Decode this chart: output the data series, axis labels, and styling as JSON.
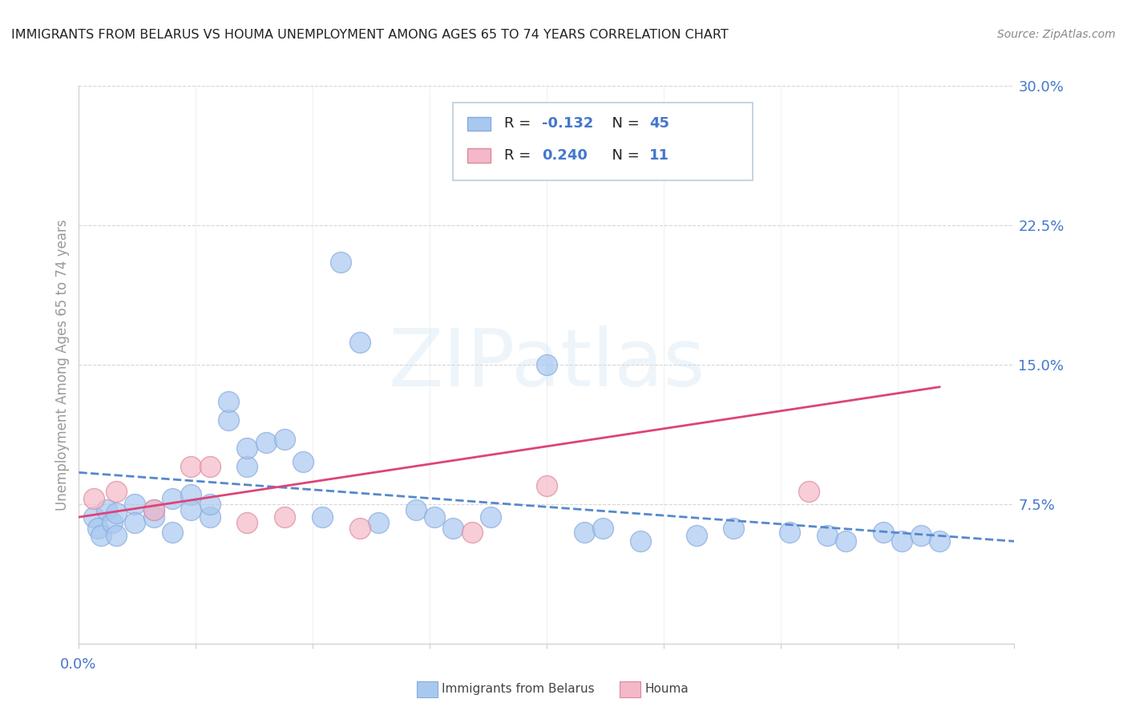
{
  "title": "IMMIGRANTS FROM BELARUS VS HOUMA UNEMPLOYMENT AMONG AGES 65 TO 74 YEARS CORRELATION CHART",
  "source": "Source: ZipAtlas.com",
  "ylabel": "Unemployment Among Ages 65 to 74 years",
  "legend_series": [
    {
      "label": "Immigrants from Belarus",
      "R": "-0.132",
      "N": "45",
      "color": "#a8c8f0"
    },
    {
      "label": "Houma",
      "R": "0.240",
      "N": "11",
      "color": "#f4b8c8"
    }
  ],
  "ytick_vals": [
    0.075,
    0.15,
    0.225,
    0.3
  ],
  "ytick_labels": [
    "7.5%",
    "15.0%",
    "22.5%",
    "30.0%"
  ],
  "xlim": [
    0.0,
    0.05
  ],
  "ylim": [
    0.0,
    0.3
  ],
  "watermark": "ZIPatlas",
  "blue_scatter_x": [
    0.0008,
    0.001,
    0.0012,
    0.0015,
    0.0018,
    0.002,
    0.002,
    0.003,
    0.003,
    0.004,
    0.004,
    0.005,
    0.005,
    0.006,
    0.006,
    0.007,
    0.007,
    0.008,
    0.008,
    0.009,
    0.009,
    0.01,
    0.011,
    0.012,
    0.013,
    0.014,
    0.015,
    0.016,
    0.018,
    0.019,
    0.02,
    0.022,
    0.025,
    0.027,
    0.028,
    0.03,
    0.033,
    0.035,
    0.038,
    0.04,
    0.041,
    0.043,
    0.044,
    0.045,
    0.046
  ],
  "blue_scatter_y": [
    0.068,
    0.062,
    0.058,
    0.072,
    0.065,
    0.07,
    0.058,
    0.075,
    0.065,
    0.072,
    0.068,
    0.078,
    0.06,
    0.08,
    0.072,
    0.068,
    0.075,
    0.12,
    0.13,
    0.095,
    0.105,
    0.108,
    0.11,
    0.098,
    0.068,
    0.205,
    0.162,
    0.065,
    0.072,
    0.068,
    0.062,
    0.068,
    0.15,
    0.06,
    0.062,
    0.055,
    0.058,
    0.062,
    0.06,
    0.058,
    0.055,
    0.06,
    0.055,
    0.058,
    0.055
  ],
  "pink_scatter_x": [
    0.0008,
    0.002,
    0.004,
    0.006,
    0.007,
    0.009,
    0.011,
    0.015,
    0.021,
    0.025,
    0.039
  ],
  "pink_scatter_y": [
    0.078,
    0.082,
    0.072,
    0.095,
    0.095,
    0.065,
    0.068,
    0.062,
    0.06,
    0.085,
    0.082
  ],
  "blue_line_x": [
    0.0,
    0.05
  ],
  "blue_line_y": [
    0.092,
    0.055
  ],
  "pink_line_x": [
    0.0,
    0.046
  ],
  "pink_line_y": [
    0.068,
    0.138
  ],
  "blue_line_color": "#5588cc",
  "pink_line_color": "#dd4477",
  "background_color": "#ffffff",
  "grid_color": "#cccccc",
  "title_color": "#222222",
  "axis_label_color": "#4477cc",
  "scatter_blue_color": "#a8c8f0",
  "scatter_pink_color": "#f4b8c8",
  "scatter_blue_edge": "#88aadd",
  "scatter_pink_edge": "#dd8899",
  "ylabel_color": "#999999",
  "tick_color": "#4477cc"
}
